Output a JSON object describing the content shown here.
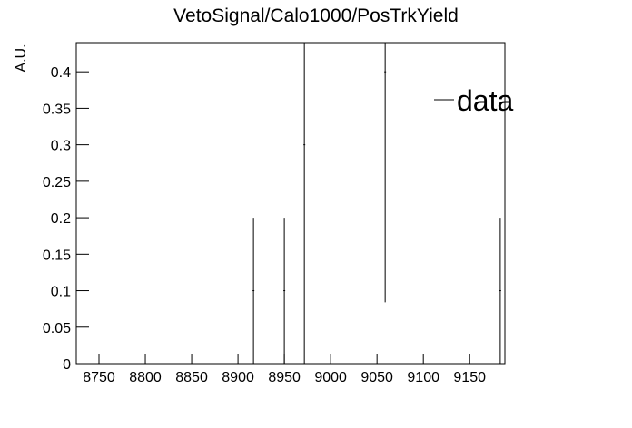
{
  "chart_data": {
    "type": "errorbar",
    "title": "VetoSignal/Calo1000/PosTrkYield",
    "y_label": "A.U.",
    "series": [
      {
        "name": "data",
        "color": "#000000",
        "x": [
          8916.7,
          8950,
          8971.6,
          9058.8,
          9183
        ],
        "values": [
          0.1,
          0.1,
          0.3,
          0.4,
          0.1
        ],
        "errors": [
          0.1,
          0.1,
          0.3,
          0.316,
          0.1
        ]
      }
    ],
    "xlim": [
      8725.5,
      9188
    ],
    "xticks": [
      8750,
      8800,
      8850,
      8900,
      8950,
      9000,
      9050,
      9100,
      9150
    ],
    "ylim": [
      0,
      0.44
    ],
    "yticks": [
      0,
      0.05,
      0.1,
      0.15,
      0.2,
      0.25,
      0.3,
      0.35,
      0.4
    ],
    "legend": "upper right"
  }
}
